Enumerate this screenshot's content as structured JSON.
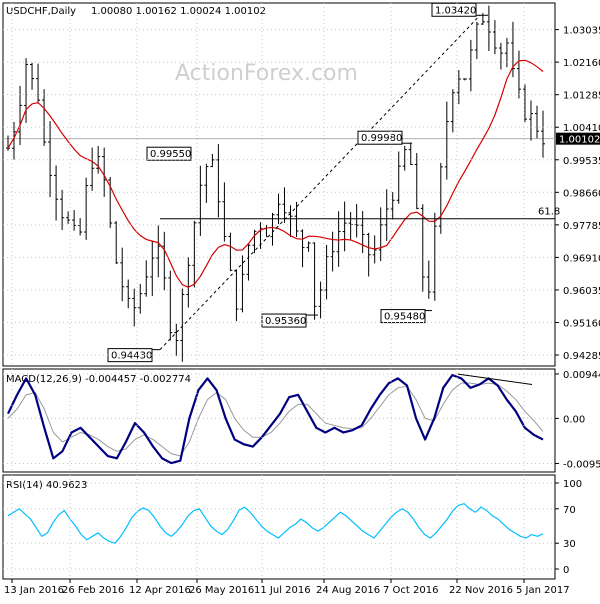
{
  "header": {
    "symbol": "USDCHF,Daily",
    "ohlc": "1.00080 1.00162 1.00024 1.00102"
  },
  "watermark": "ActionForex.com",
  "colors": {
    "price": "#000000",
    "ma": "#d40000",
    "macd": "#000080",
    "signal": "#999999",
    "rsi": "#00bfff",
    "grid": "#c8c8c8"
  },
  "chart_data": [
    {
      "type": "candlestick",
      "title": "USDCHF,Daily",
      "x_ticks": [
        "13 Jan 2016",
        "26 Feb 2016",
        "12 Apr 2016",
        "26 May 2016",
        "11 Jul 2016",
        "24 Aug 2016",
        "7 Oct 2016",
        "22 Nov 2016",
        "5 Jan 2017"
      ],
      "y_ticks": [
        0.94285,
        0.9516,
        0.96035,
        0.9691,
        0.97785,
        0.9866,
        0.99535,
        1.0041,
        1.01285,
        1.0216,
        1.03035
      ],
      "ylim": [
        0.9399,
        1.0375
      ],
      "last_price": 1.00102,
      "moving_average_color": "red",
      "close_series": [
        0.9985,
        1.004,
        1.012,
        1.022,
        1.016,
        1.012,
        0.998,
        0.992,
        0.985,
        0.98,
        0.978,
        0.975,
        0.976,
        0.992,
        0.996,
        0.994,
        0.987,
        0.972,
        0.965,
        0.959,
        0.954,
        0.957,
        0.962,
        0.968,
        0.972,
        0.968,
        0.955,
        0.9443,
        0.954,
        0.966,
        0.975,
        0.987,
        0.993,
        0.9955,
        0.988,
        0.976,
        0.966,
        0.956,
        0.962,
        0.972,
        0.976,
        0.978,
        0.976,
        0.98,
        0.985,
        0.983,
        0.979,
        0.975,
        0.972,
        0.975,
        0.9536,
        0.962,
        0.969,
        0.973,
        0.977,
        0.979,
        0.978,
        0.976,
        0.972,
        0.969,
        0.972,
        0.98,
        0.984,
        0.988,
        0.9948,
        0.9998,
        0.988,
        0.972,
        0.9548,
        0.969,
        0.986,
        1.002,
        1.013,
        1.019,
        1.016,
        1.022,
        1.029,
        1.034,
        1.032,
        1.028,
        1.024,
        1.028,
        1.019,
        1.013,
        1.008,
        1.007,
        1.004,
        1.001
      ],
      "annotations": [
        {
          "label": "0.94430",
          "value": 0.9443
        },
        {
          "label": "0.99550",
          "value": 0.9955
        },
        {
          "label": "0.95360",
          "value": 0.9536
        },
        {
          "label": "0.99980",
          "value": 0.9998
        },
        {
          "label": "0.95480",
          "value": 0.9548
        },
        {
          "label": "1.03420",
          "value": 1.0342
        }
      ],
      "fib_level": {
        "label": "61.8",
        "value": 0.9795
      }
    },
    {
      "type": "line",
      "title": "MACD(12,26,9) -0.004457 -0.002774",
      "y_ticks": [
        0.009446,
        0,
        -0.009588
      ],
      "y_tick_labels": [
        "0.009446",
        "0.00",
        "-0.009588"
      ],
      "ylim": [
        -0.0114,
        0.0105
      ],
      "series": [
        {
          "values": [
            0.001,
            0.005,
            0.0085,
            0.005,
            -0.002,
            -0.0085,
            -0.007,
            -0.003,
            -0.002,
            -0.004,
            -0.006,
            -0.008,
            -0.0085,
            -0.005,
            -0.001,
            -0.003,
            -0.006,
            -0.0085,
            -0.0095,
            -0.009,
            0.0,
            0.006,
            0.0085,
            0.006,
            0.0,
            -0.0045,
            -0.0055,
            -0.006,
            -0.004,
            -0.0015,
            0.001,
            0.0045,
            0.005,
            0.0015,
            -0.002,
            -0.003,
            -0.002,
            -0.003,
            -0.0025,
            -0.0015,
            0.002,
            0.005,
            0.0075,
            0.0085,
            0.007,
            0.0,
            -0.0045,
            0.0,
            0.0065,
            0.0092,
            0.0085,
            0.0065,
            0.0072,
            0.0085,
            0.007,
            0.004,
            0.0015,
            -0.002,
            -0.0035,
            -0.0045
          ]
        },
        {
          "values": [
            0.0,
            0.002,
            0.005,
            0.0055,
            0.002,
            -0.003,
            -0.005,
            -0.004,
            -0.003,
            -0.0035,
            -0.0045,
            -0.006,
            -0.007,
            -0.0065,
            -0.0045,
            -0.0035,
            -0.0045,
            -0.006,
            -0.0075,
            -0.008,
            -0.005,
            0.0,
            0.004,
            0.0055,
            0.004,
            0.0,
            -0.0025,
            -0.004,
            -0.004,
            -0.003,
            -0.001,
            0.0015,
            0.003,
            0.003,
            0.001,
            -0.001,
            -0.0015,
            -0.002,
            -0.0022,
            -0.002,
            0.0,
            0.0025,
            0.005,
            0.0065,
            0.0068,
            0.004,
            0.0,
            -0.0005,
            0.003,
            0.006,
            0.0075,
            0.0075,
            0.0072,
            0.0075,
            0.0072,
            0.0058,
            0.004,
            0.0015,
            -0.0005,
            -0.0028
          ]
        }
      ]
    },
    {
      "type": "line",
      "title": "RSI(14) 40.9623",
      "y_ticks": [
        100,
        70,
        30,
        0
      ],
      "ylim": [
        0,
        100
      ],
      "series": [
        {
          "values": [
            62,
            66,
            70,
            64,
            58,
            48,
            38,
            42,
            54,
            63,
            68,
            58,
            50,
            40,
            34,
            38,
            42,
            36,
            32,
            30,
            38,
            48,
            60,
            67,
            71,
            68,
            60,
            50,
            42,
            38,
            44,
            52,
            62,
            68,
            70,
            60,
            50,
            44,
            40,
            46,
            56,
            68,
            72,
            66,
            58,
            50,
            44,
            40,
            36,
            42,
            48,
            52,
            58,
            54,
            48,
            44,
            48,
            54,
            60,
            66,
            62,
            56,
            50,
            44,
            40,
            36,
            44,
            52,
            60,
            66,
            70,
            66,
            58,
            48,
            40,
            36,
            42,
            50,
            58,
            68,
            74,
            76,
            70,
            66,
            72,
            68,
            62,
            58,
            52,
            46,
            42,
            38,
            36,
            40,
            38,
            41
          ]
        }
      ]
    }
  ]
}
